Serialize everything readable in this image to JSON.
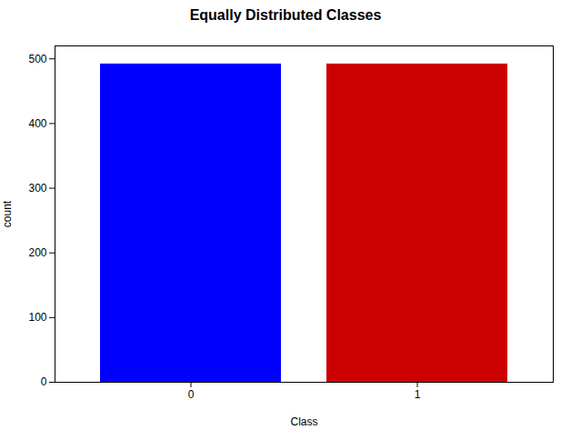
{
  "chart_data": {
    "type": "bar",
    "title": "Equally Distributed Classes",
    "xlabel": "Class",
    "ylabel": "count",
    "categories": [
      "0",
      "1"
    ],
    "values": [
      492,
      492
    ],
    "colors": [
      "#0000ff",
      "#cc0000"
    ],
    "ylim": [
      0,
      520
    ],
    "yticks": [
      0,
      100,
      200,
      300,
      400,
      500
    ],
    "grid": false
  }
}
